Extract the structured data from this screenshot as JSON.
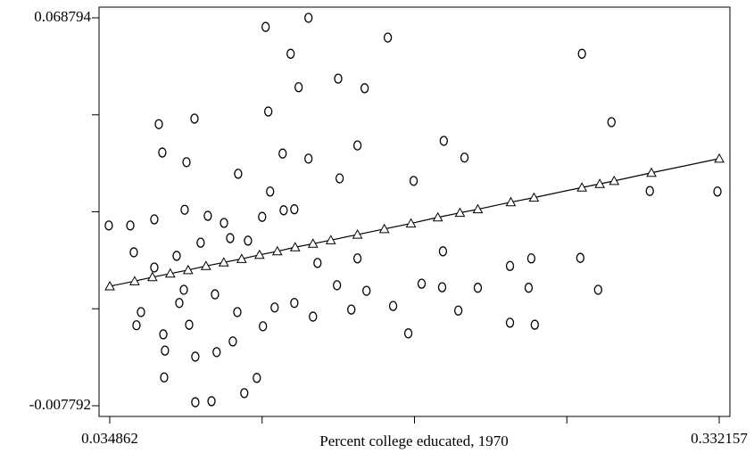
{
  "chart_data": {
    "type": "scatter",
    "xlabel": "Percent college educated, 1970",
    "xlim": [
      0.029646,
      0.337373
    ],
    "ylim": [
      -0.009905,
      0.070907
    ],
    "xticks": [
      0.034862,
      {
        "value": 0.109186,
        "label": null
      },
      {
        "value": 0.18351,
        "label": null
      },
      {
        "value": 0.257833,
        "label": null
      },
      0.332157
    ],
    "yticks": [
      -0.007792,
      {
        "value": 0.011354,
        "label": null
      },
      {
        "value": 0.030501,
        "label": null
      },
      {
        "value": 0.049647,
        "label": null
      },
      0.068794
    ],
    "series": [
      {
        "marker": "circle",
        "color": "#000000",
        "x": [
          0.0344,
          0.1318,
          0.1109,
          0.1705,
          0.1231,
          0.2652,
          0.1463,
          0.1592,
          0.127,
          0.0588,
          0.0762,
          0.2796,
          0.1122,
          0.0605,
          0.1978,
          0.0975,
          0.0723,
          0.1192,
          0.1557,
          0.1831,
          0.2079,
          0.2983,
          0.3313,
          0.0449,
          0.0566,
          0.0714,
          0.0827,
          0.0906,
          0.1092,
          0.1197,
          0.0466,
          0.0566,
          0.0675,
          0.0936,
          0.1023,
          0.0501,
          0.0479,
          0.061,
          0.0736,
          0.0618,
          0.0766,
          0.0614,
          0.0766,
          0.0845,
          0.1005,
          0.087,
          0.0949,
          0.1096,
          0.1066,
          0.1153,
          0.1249,
          0.134,
          0.1457,
          0.1527,
          0.1601,
          0.1731,
          0.1805,
          0.187,
          0.197,
          0.2049,
          0.2144,
          0.2301,
          0.2405,
          0.2392,
          0.2644,
          0.2731,
          0.2301,
          0.2422,
          0.1974,
          0.1557,
          0.1362,
          0.0792,
          0.1318,
          0.1131,
          0.147,
          0.071,
          0.0862,
          0.0971,
          0.0688,
          0.1249
        ],
        "values": [
          0.0278,
          0.0688,
          0.067,
          0.0649,
          0.0617,
          0.0617,
          0.0568,
          0.0549,
          0.0551,
          0.0478,
          0.0489,
          0.0482,
          0.0503,
          0.0422,
          0.0445,
          0.038,
          0.0403,
          0.042,
          0.0436,
          0.0366,
          0.0412,
          0.0346,
          0.0345,
          0.0278,
          0.029,
          0.0309,
          0.0297,
          0.0283,
          0.0295,
          0.0308,
          0.0225,
          0.0195,
          0.0218,
          0.0253,
          0.0248,
          0.0107,
          0.0081,
          0.0063,
          0.0082,
          0.0031,
          0.0019,
          -0.0022,
          -0.0071,
          -0.0069,
          -0.0053,
          0.0028,
          0.0049,
          0.0079,
          -0.0023,
          0.0116,
          0.0125,
          0.0098,
          0.016,
          0.0112,
          0.0149,
          0.0119,
          0.0065,
          0.0163,
          0.0156,
          0.011,
          0.0155,
          0.0198,
          0.0213,
          0.0155,
          0.0214,
          0.0151,
          0.0086,
          0.0082,
          0.0227,
          0.0213,
          0.0204,
          0.0244,
          0.041,
          0.0345,
          0.0371,
          0.0151,
          0.0142,
          0.0107,
          0.0125,
          0.031
        ]
      },
      {
        "marker": "triangle",
        "connect": true,
        "color": "#000000",
        "x": [
          0.0349,
          0.047,
          0.0557,
          0.0644,
          0.0731,
          0.0818,
          0.0905,
          0.0992,
          0.1079,
          0.1166,
          0.1253,
          0.134,
          0.1427,
          0.1557,
          0.1688,
          0.1818,
          0.1949,
          0.2057,
          0.2144,
          0.2305,
          0.2418,
          0.2652,
          0.2739,
          0.2809,
          0.2991,
          0.3322
        ],
        "values": [
          0.0158,
          0.0168,
          0.0176,
          0.0183,
          0.019,
          0.0198,
          0.0205,
          0.0212,
          0.022,
          0.0227,
          0.0235,
          0.0242,
          0.0249,
          0.026,
          0.0271,
          0.0282,
          0.0294,
          0.0303,
          0.031,
          0.0324,
          0.0333,
          0.0353,
          0.036,
          0.0366,
          0.0382,
          0.041
        ]
      }
    ]
  }
}
